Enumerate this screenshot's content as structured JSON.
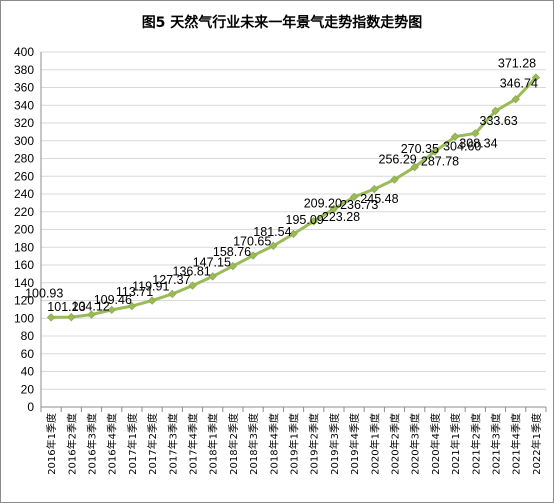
{
  "chart_data": {
    "type": "line",
    "title": "图5 天然气行业未来一年景气走势指数走势图",
    "xlabel": "",
    "ylabel": "",
    "ylim": [
      0,
      400
    ],
    "ytick_step": 20,
    "grid": true,
    "legend": "none",
    "line_color": "#9bbb59",
    "categories": [
      "2016年1季度",
      "2016年2季度",
      "2016年3季度",
      "2016年4季度",
      "2017年1季度",
      "2017年2季度",
      "2017年3季度",
      "2017年4季度",
      "2018年1季度",
      "2018年2季度",
      "2018年3季度",
      "2018年4季度",
      "2019年1季度",
      "2019年2季度",
      "2019年3季度",
      "2019年4季度",
      "2020年1季度",
      "2020年2季度",
      "2020年3季度",
      "2020年4季度",
      "2021年1季度",
      "2021年2季度",
      "2021年3季度",
      "2021年4季度",
      "2022年1季度"
    ],
    "values": [
      100.93,
      101.23,
      104.12,
      109.46,
      113.71,
      119.91,
      127.37,
      136.81,
      147.15,
      158.76,
      170.65,
      181.54,
      195.09,
      209.2,
      223.28,
      236.73,
      245.48,
      256.29,
      270.35,
      287.78,
      304.6,
      308.34,
      333.63,
      346.74,
      371.28
    ],
    "data_labels": [
      "100.93",
      "101.23",
      "104.12",
      "109.46",
      "113.71",
      "119.91",
      "127.37",
      "136.81",
      "147.15",
      "158.76",
      "170.65",
      "181.54",
      "195.09",
      "209.20",
      "223.28",
      "236.73",
      "245.48",
      "256.29",
      "270.35",
      "287.78",
      "304.60",
      "308.34",
      "333.63",
      "346.74",
      "371.28"
    ]
  }
}
